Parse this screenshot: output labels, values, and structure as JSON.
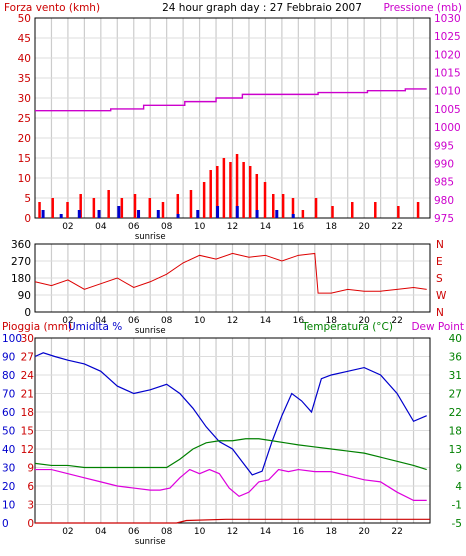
{
  "chart_data": [
    {
      "type": "bar",
      "title": "24 hour graph day : 27 Febbraio 2007",
      "ylabel_left": "Forza vento (kmh)",
      "ylabel_right": "Pressione (mb)",
      "ylim_left": [
        0,
        50
      ],
      "ylim_right": [
        975,
        1030
      ],
      "yticks_left": [
        "0",
        "5",
        "10",
        "15",
        "20",
        "25",
        "30",
        "35",
        "40",
        "45",
        "50"
      ],
      "yticks_right": [
        "975",
        "980",
        "985",
        "990",
        "995",
        "1000",
        "1005",
        "1010",
        "1015",
        "1020",
        "1025",
        "1030"
      ],
      "x_ticks": [
        "02",
        "04",
        "06",
        "08",
        "10",
        "12",
        "14",
        "16",
        "18",
        "20",
        "22"
      ],
      "sunrise_label": "sunrise",
      "grid": true,
      "series": [
        {
          "name": "Pressione (mb)",
          "color": "#cc00cc",
          "x": [
            0.0,
            2.0,
            4.6,
            4.6,
            6.6,
            6.6,
            9.1,
            9.1,
            11.0,
            11.0,
            12.6,
            12.6,
            17.2,
            17.2,
            20.2,
            20.2,
            22.5,
            22.5,
            23.8
          ],
          "values": [
            1004.5,
            1004.5,
            1004.5,
            1005.0,
            1005.0,
            1006.0,
            1006.0,
            1007.0,
            1007.0,
            1008.0,
            1008.0,
            1009.0,
            1009.0,
            1009.5,
            1009.5,
            1010.0,
            1010.0,
            1010.5,
            1010.5
          ]
        },
        {
          "name": "Vento massimo",
          "color": "#ff0000",
          "x": [
            0.2,
            1.0,
            1.9,
            2.7,
            3.5,
            4.4,
            5.2,
            6.0,
            6.9,
            7.7,
            8.6,
            9.4,
            10.2,
            10.6,
            11.0,
            11.4,
            11.8,
            12.2,
            12.6,
            13.0,
            13.4,
            13.9,
            14.4,
            15.0,
            15.6,
            16.2,
            17.0,
            18.0,
            19.2,
            20.6,
            22.0,
            23.2
          ],
          "values": [
            4,
            5,
            4,
            6,
            5,
            7,
            5,
            6,
            5,
            4,
            6,
            7,
            9,
            12,
            13,
            15,
            14,
            16,
            14,
            13,
            11,
            9,
            6,
            6,
            5,
            2,
            5,
            3,
            4,
            4,
            3,
            4
          ]
        },
        {
          "name": "Vento medio",
          "color": "#0000cc",
          "x": [
            0.4,
            1.5,
            2.6,
            3.8,
            5.0,
            6.2,
            7.4,
            8.6,
            9.8,
            11.0,
            12.2,
            13.4,
            14.6,
            15.6
          ],
          "values": [
            2,
            1,
            2,
            2,
            3,
            2,
            2,
            1,
            2,
            3,
            3,
            2,
            2,
            1
          ]
        }
      ]
    },
    {
      "type": "line",
      "ylabel_left": "direction",
      "ylim": [
        0,
        360
      ],
      "yticks_left": [
        "0",
        "90",
        "180",
        "270",
        "360"
      ],
      "yticks_right": [
        "N",
        "E",
        "S",
        "W",
        "N"
      ],
      "x_ticks": [
        "02",
        "04",
        "06",
        "08",
        "10",
        "12",
        "14",
        "16",
        "18",
        "20",
        "22"
      ],
      "sunrise_label": "sunrise",
      "series": [
        {
          "name": "Direzione vento",
          "color": "#dd0000",
          "x": [
            0.0,
            1.0,
            2.0,
            3.0,
            4.0,
            5.0,
            6.0,
            7.0,
            8.0,
            9.0,
            10.0,
            11.0,
            12.0,
            13.0,
            14.0,
            15.0,
            16.0,
            17.0,
            17.2,
            18.0,
            19.0,
            20.0,
            21.0,
            22.0,
            23.0,
            23.8
          ],
          "values": [
            160,
            140,
            170,
            120,
            150,
            180,
            130,
            160,
            200,
            260,
            300,
            280,
            310,
            290,
            300,
            270,
            300,
            310,
            100,
            100,
            120,
            110,
            110,
            120,
            130,
            120
          ]
        }
      ]
    },
    {
      "type": "line",
      "ylabel_left": "Pioggia (mm)",
      "ylabel_left2": "Umidita %",
      "ylabel_right": "Temperatura (°C)",
      "ylabel_right2": "Dew Point",
      "yticks_left_humidity": [
        "0",
        "10",
        "20",
        "30",
        "40",
        "50",
        "60",
        "70",
        "80",
        "90",
        "100"
      ],
      "yticks_left_rain": [
        "0",
        "3",
        "6",
        "9",
        "12",
        "15",
        "18",
        "21",
        "24",
        "27",
        "30"
      ],
      "yticks_right": [
        "-5",
        "-1",
        "4",
        "9",
        "13",
        "18",
        "22",
        "27",
        "31",
        "36",
        "40"
      ],
      "ylim_humidity": [
        0,
        100
      ],
      "ylim_temp": [
        -5,
        40
      ],
      "x_ticks": [
        "02",
        "04",
        "06",
        "08",
        "10",
        "12",
        "14",
        "16",
        "18",
        "20",
        "22"
      ],
      "sunrise_label": "sunrise",
      "series": [
        {
          "name": "Umidita %",
          "color": "#0000cc",
          "x": [
            0.0,
            0.5,
            1.2,
            2.0,
            3.0,
            4.0,
            5.0,
            6.0,
            7.0,
            8.0,
            8.8,
            9.6,
            10.4,
            11.2,
            12.0,
            12.6,
            13.2,
            13.8,
            14.4,
            15.0,
            15.6,
            16.2,
            16.8,
            17.4,
            18.0,
            19.0,
            20.0,
            21.0,
            22.0,
            23.0,
            23.8
          ],
          "values": [
            90,
            92,
            90,
            88,
            86,
            82,
            74,
            70,
            72,
            75,
            70,
            62,
            52,
            44,
            40,
            33,
            26,
            28,
            44,
            58,
            70,
            66,
            60,
            78,
            80,
            82,
            84,
            80,
            70,
            55,
            58
          ]
        },
        {
          "name": "Temperatura (°C)",
          "color": "#008000",
          "x": [
            0.0,
            1.0,
            2.0,
            3.0,
            4.0,
            5.0,
            6.0,
            7.0,
            8.0,
            8.8,
            9.6,
            10.4,
            11.2,
            12.0,
            12.8,
            13.6,
            14.4,
            15.2,
            16.0,
            17.0,
            18.0,
            19.0,
            20.0,
            21.0,
            22.0,
            23.0,
            23.8
          ],
          "values": [
            9.5,
            9.0,
            9.0,
            8.5,
            8.5,
            8.5,
            8.5,
            8.5,
            8.5,
            10.5,
            13.0,
            14.5,
            15.0,
            15.0,
            15.5,
            15.5,
            15.0,
            14.5,
            14.0,
            13.5,
            13.0,
            12.5,
            12.0,
            11.0,
            10.0,
            9.0,
            8.0
          ]
        },
        {
          "name": "Dew Point",
          "color": "#dd00dd",
          "x": [
            0.0,
            1.0,
            2.0,
            3.0,
            4.0,
            5.0,
            6.0,
            7.0,
            7.6,
            8.2,
            8.8,
            9.4,
            10.0,
            10.6,
            11.2,
            11.8,
            12.4,
            13.0,
            13.6,
            14.2,
            14.8,
            15.4,
            16.0,
            17.0,
            18.0,
            19.0,
            20.0,
            21.0,
            22.0,
            23.0,
            23.8
          ],
          "values": [
            8.0,
            8.0,
            7.0,
            6.0,
            5.0,
            4.0,
            3.5,
            3.0,
            3.0,
            3.5,
            6.0,
            8.0,
            7.0,
            8.0,
            7.0,
            3.5,
            1.5,
            2.5,
            5.0,
            5.5,
            8.0,
            7.5,
            8.0,
            7.5,
            7.5,
            6.5,
            5.5,
            5.0,
            2.5,
            0.5,
            0.5
          ]
        },
        {
          "name": "Pioggia (mm)",
          "color": "#cc0000",
          "x": [
            0.0,
            8.6,
            9.2,
            11.6,
            12.6,
            24.0
          ],
          "values": [
            0.0,
            0.0,
            0.4,
            0.6,
            0.6,
            0.6
          ]
        }
      ]
    }
  ],
  "labels": {
    "wind_left": "Forza vento (kmh)",
    "title": "24 hour graph day : 27 Febbraio 2007",
    "pressure_right": "Pressione (mb)",
    "rain_left": "Pioggia (mm)",
    "humidity_left": "Umidita %",
    "temp_right": "Temperatura (°C)",
    "dew_right": "Dew Point"
  },
  "colors": {
    "wind_text": "#cc0000",
    "pressure_text": "#cc00cc",
    "grid": "#cccccc",
    "frame": "#000000",
    "rain_text": "#cc0000",
    "humidity_text": "#0000cc",
    "temp_text": "#008000",
    "dew_text": "#cc00cc"
  }
}
